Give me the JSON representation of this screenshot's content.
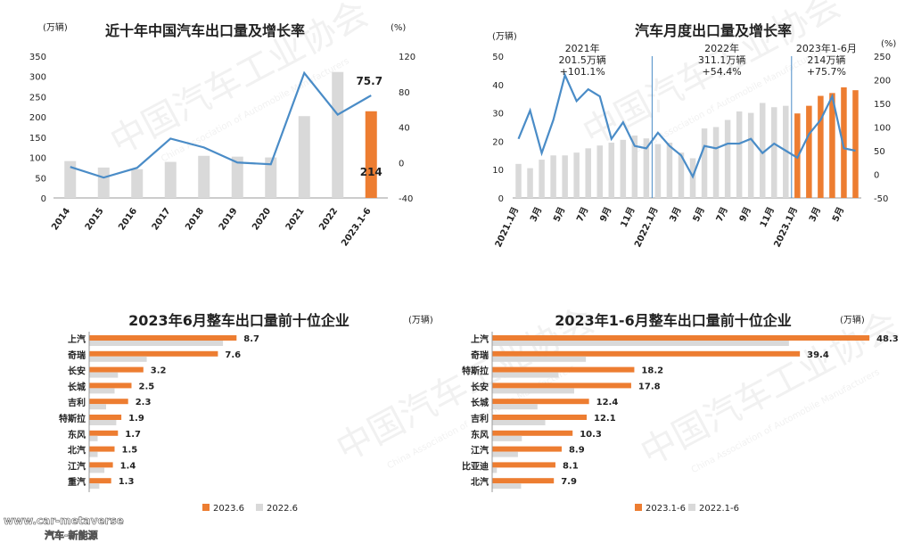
{
  "watermark": {
    "cam_text": "中国汽车工业协会",
    "cam_en": "China Association of Automobile Manufacturers",
    "url": "www.car-metaverse",
    "site_cn": "汽车-新能源"
  },
  "colors": {
    "orange": "#ED7D31",
    "gray": "#D9D9D9",
    "line": "#4A8CC7",
    "text": "#222222",
    "axis": "#BFBFBF"
  },
  "chart_data": [
    {
      "id": "annual",
      "type": "bar",
      "title": "近十年中国汽车出口量及增长率",
      "unit_left": "(万辆)",
      "unit_right": "(%)",
      "categories": [
        "2014",
        "2015",
        "2016",
        "2017",
        "2018",
        "2019",
        "2020",
        "2021",
        "2022",
        "2023.1-6"
      ],
      "series": [
        {
          "kind": "bar",
          "values": [
            91,
            75,
            71,
            89,
            104,
            102,
            100,
            202,
            311,
            214
          ],
          "highlight_last": true
        },
        {
          "kind": "line",
          "axis": "right",
          "values": [
            -5,
            -17,
            -6,
            27,
            17,
            0,
            -2,
            101,
            54,
            75.7
          ]
        }
      ],
      "ylim_left": [
        0,
        350
      ],
      "yticks_left": [
        "0",
        "50",
        "100",
        "150",
        "200",
        "250",
        "300",
        "350"
      ],
      "ylim_right": [
        -40,
        120
      ],
      "yticks_right": [
        "-40",
        "0",
        "40",
        "80",
        "120"
      ],
      "labels": {
        "bar_last": "214",
        "line_last": "75.7"
      }
    },
    {
      "id": "monthly",
      "type": "bar",
      "title": "汽车月度出口量及增长率",
      "unit_left": "(万辆)",
      "unit_right": "(%)",
      "tick_labels": [
        "2021.1月",
        "3月",
        "5月",
        "7月",
        "9月",
        "11月",
        "2022.1月",
        "3月",
        "5月",
        "7月",
        "9月",
        "11月",
        "2023.1月",
        "3月",
        "5月"
      ],
      "series": [
        {
          "kind": "bar",
          "values": [
            12,
            10.5,
            13.5,
            15,
            15,
            16,
            17.5,
            18.5,
            19.5,
            20.5,
            22,
            21,
            19,
            19.5,
            16,
            14,
            24.5,
            25,
            27.5,
            30.5,
            30,
            33.5,
            32,
            32.5,
            29.8,
            32.5,
            36,
            37,
            39,
            38
          ],
          "highlight_from": 24
        },
        {
          "kind": "line",
          "axis": "right",
          "values": [
            75,
            135,
            45,
            115,
            210,
            155,
            180,
            165,
            75,
            110,
            60,
            55,
            88,
            60,
            40,
            -5,
            60,
            55,
            65,
            65,
            75,
            45,
            65,
            50,
            35,
            85,
            115,
            165,
            55,
            50
          ]
        }
      ],
      "ylim_left": [
        0,
        50
      ],
      "yticks_left": [
        "0",
        "10",
        "20",
        "30",
        "40",
        "50"
      ],
      "ylim_right": [
        -50,
        250
      ],
      "yticks_right": [
        "-50",
        "0",
        "50",
        "100",
        "150",
        "200",
        "250"
      ],
      "annotations": [
        {
          "lines": [
            "2021年",
            "201.5万辆",
            "+101.1%"
          ]
        },
        {
          "lines": [
            "2022年",
            "311.1万辆",
            "+54.4%"
          ]
        },
        {
          "lines": [
            "2023年1-6月",
            "214万辆",
            "+75.7%"
          ]
        }
      ]
    },
    {
      "id": "june_top10",
      "type": "bar",
      "orientation": "horizontal",
      "title": "2023年6月整车出口量前十位企业",
      "unit": "(万辆)",
      "categories": [
        "上汽",
        "奇瑞",
        "长安",
        "长城",
        "吉利",
        "特斯拉",
        "东风",
        "北汽",
        "江汽",
        "重汽"
      ],
      "series": [
        {
          "name": "2023.6",
          "values": [
            8.7,
            7.6,
            3.2,
            2.5,
            2.3,
            1.9,
            1.7,
            1.5,
            1.4,
            1.3
          ],
          "labels": [
            "8.7",
            "7.6",
            "3.2",
            "2.5",
            "2.3",
            "1.9",
            "1.7",
            "1.5",
            "1.4",
            "1.3"
          ]
        },
        {
          "name": "2022.6",
          "values": [
            7.9,
            3.4,
            1.7,
            1.5,
            1.0,
            1.6,
            0.5,
            0.5,
            0.9,
            0.6
          ]
        }
      ],
      "xlim": [
        0,
        10
      ]
    },
    {
      "id": "h1_top10",
      "type": "bar",
      "orientation": "horizontal",
      "title": "2023年1-6月整车出口量前十位企业",
      "unit": "(万辆)",
      "categories": [
        "上汽",
        "奇瑞",
        "特斯拉",
        "长安",
        "长城",
        "吉利",
        "东风",
        "江汽",
        "比亚迪",
        "北汽"
      ],
      "series": [
        {
          "name": "2023.1-6",
          "values": [
            48.3,
            39.4,
            18.2,
            17.8,
            12.4,
            12.1,
            10.3,
            8.9,
            8.1,
            7.9
          ],
          "labels": [
            "48.3",
            "39.4",
            "18.2",
            "17.8",
            "12.4",
            "12.1",
            "10.3",
            "8.9",
            "8.1",
            "7.9"
          ]
        },
        {
          "name": "2022.1-6",
          "values": [
            38.0,
            12.0,
            8.5,
            10.5,
            5.8,
            6.8,
            3.8,
            3.3,
            0.6,
            3.7
          ]
        }
      ],
      "xlim": [
        0,
        50
      ]
    }
  ]
}
